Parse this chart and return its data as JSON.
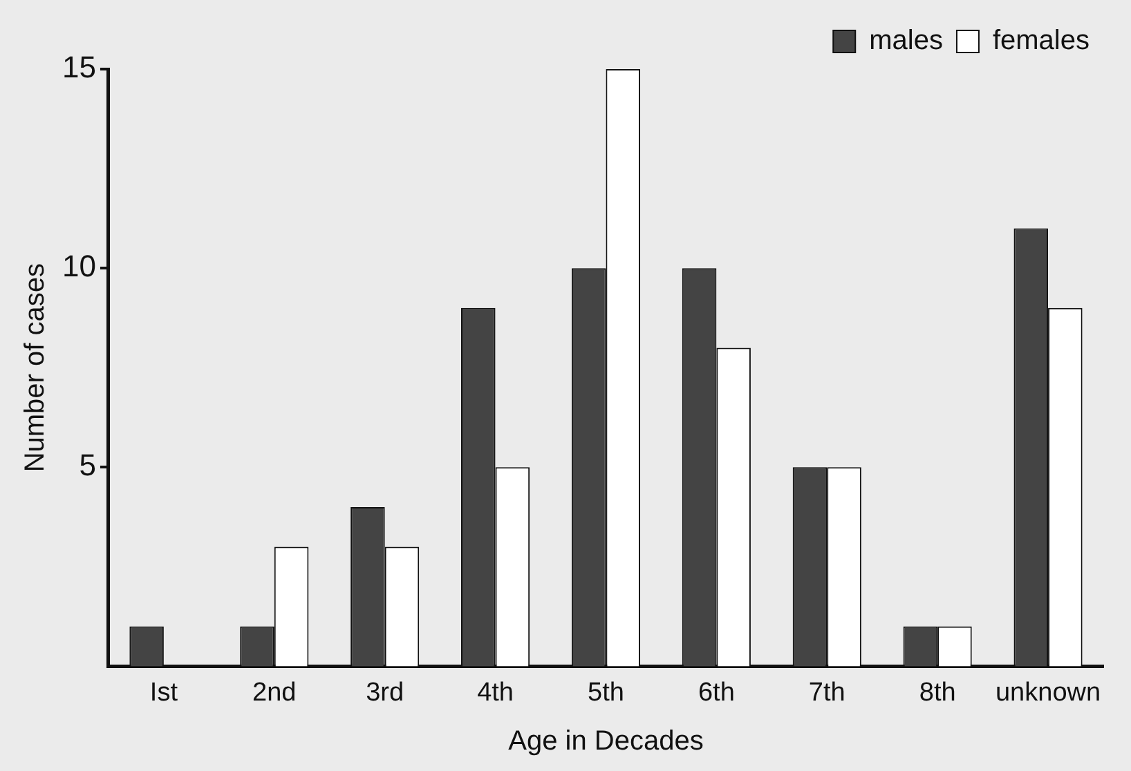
{
  "chart_data": {
    "type": "bar",
    "xlabel": "Age in Decades",
    "ylabel": "Number of cases",
    "categories": [
      "Ist",
      "2nd",
      "3rd",
      "4th",
      "5th",
      "6th",
      "7th",
      "8th",
      "unknown"
    ],
    "series": [
      {
        "name": "males",
        "color": "#444444",
        "values": [
          1,
          1,
          4,
          9,
          10,
          10,
          5,
          1,
          11
        ]
      },
      {
        "name": "females",
        "color": "#ffffff",
        "values": [
          0,
          3,
          3,
          5,
          15,
          8,
          5,
          1,
          9
        ]
      }
    ],
    "ylim": [
      0,
      15
    ],
    "yticks": [
      5,
      10,
      15
    ],
    "grid": false,
    "legend": "top right"
  }
}
